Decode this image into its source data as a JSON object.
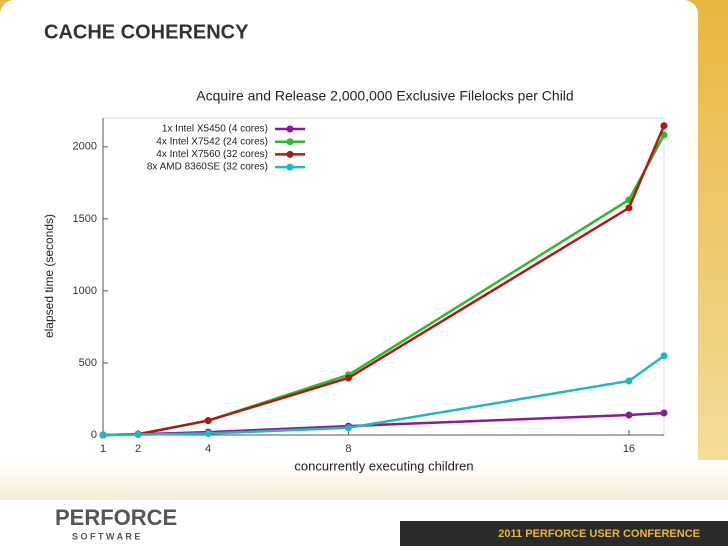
{
  "slide": {
    "title": "CACHE COHERENCY",
    "logo": "PERFORCE",
    "logo_sub": "S O F T W A R E",
    "conference": "2011 PERFORCE USER CONFERENCE"
  },
  "chart_data": {
    "type": "line",
    "title": "Acquire and Release 2,000,000 Exclusive Filelocks per Child",
    "xlabel": "concurrently executing children",
    "ylabel": "elapsed time (seconds)",
    "x": [
      1,
      2,
      4,
      8,
      16,
      17
    ],
    "xlim": [
      1,
      17
    ],
    "xticks": [
      1,
      2,
      4,
      8,
      16
    ],
    "ylim": [
      0,
      2200
    ],
    "yticks": [
      0,
      500,
      1000,
      1500,
      2000
    ],
    "legend": "upper left",
    "series": [
      {
        "name": "1x Intel X5450 (4 cores)",
        "color": "#8b1a9b",
        "values": [
          0,
          5,
          20,
          62,
          139,
          153
        ]
      },
      {
        "name": "4x Intel X7542 (24 cores)",
        "color": "#2db82d",
        "values": [
          0,
          5,
          100,
          417,
          1632,
          2083
        ]
      },
      {
        "name": "4x Intel X7560 (32 cores)",
        "color": "#b01818",
        "values": [
          0,
          5,
          100,
          396,
          1576,
          2146
        ]
      },
      {
        "name": "8x AMD 8360SE (32 cores)",
        "color": "#20b8b8",
        "values": [
          0,
          3,
          10,
          50,
          375,
          549
        ]
      }
    ]
  }
}
